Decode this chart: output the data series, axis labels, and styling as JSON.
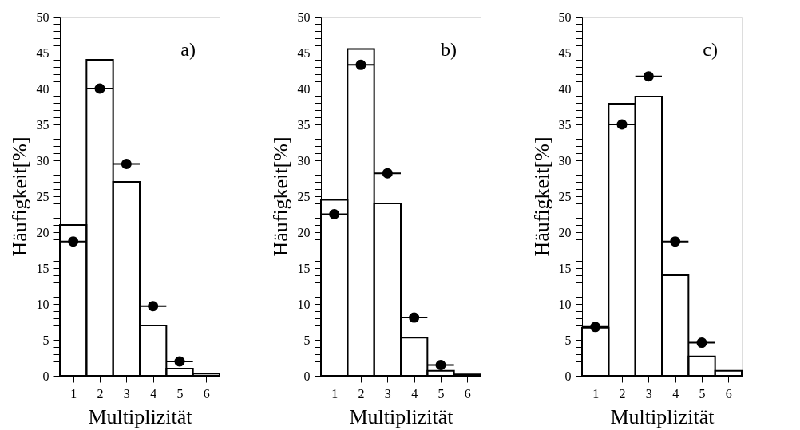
{
  "chart_data": [
    {
      "type": "histogram",
      "xlabel": "Multiplizität",
      "ylabel": "Häufigkeit[%]",
      "annotations": [
        "a)"
      ],
      "bins": [
        0.5,
        1.5,
        2.5,
        3.5,
        4.5,
        5.5,
        6.5
      ],
      "xlim": [
        0.5,
        6.5
      ],
      "xticks": [
        1,
        2,
        3,
        4,
        5,
        6
      ],
      "ylim": [
        0,
        50
      ],
      "yticks": [
        0,
        {
          "value": 1,
          "label": null
        },
        {
          "value": 2,
          "label": null
        },
        {
          "value": 3,
          "label": null
        },
        {
          "value": 4,
          "label": null
        },
        5,
        {
          "value": 6,
          "label": null
        },
        {
          "value": 7,
          "label": null
        },
        {
          "value": 8,
          "label": null
        },
        {
          "value": 9,
          "label": null
        },
        10,
        {
          "value": 11,
          "label": null
        },
        {
          "value": 12,
          "label": null
        },
        {
          "value": 13,
          "label": null
        },
        {
          "value": 14,
          "label": null
        },
        15,
        {
          "value": 16,
          "label": null
        },
        {
          "value": 17,
          "label": null
        },
        {
          "value": 18,
          "label": null
        },
        {
          "value": 19,
          "label": null
        },
        20,
        {
          "value": 21,
          "label": null
        },
        {
          "value": 22,
          "label": null
        },
        {
          "value": 23,
          "label": null
        },
        {
          "value": 24,
          "label": null
        },
        25,
        {
          "value": 26,
          "label": null
        },
        {
          "value": 27,
          "label": null
        },
        {
          "value": 28,
          "label": null
        },
        {
          "value": 29,
          "label": null
        },
        30,
        {
          "value": 31,
          "label": null
        },
        {
          "value": 32,
          "label": null
        },
        {
          "value": 33,
          "label": null
        },
        {
          "value": 34,
          "label": null
        },
        35,
        {
          "value": 36,
          "label": null
        },
        {
          "value": 37,
          "label": null
        },
        {
          "value": 38,
          "label": null
        },
        {
          "value": 39,
          "label": null
        },
        40,
        {
          "value": 41,
          "label": null
        },
        {
          "value": 42,
          "label": null
        },
        {
          "value": 43,
          "label": null
        },
        {
          "value": 44,
          "label": null
        },
        45,
        {
          "value": 46,
          "label": null
        },
        {
          "value": 47,
          "label": null
        },
        {
          "value": 48,
          "label": null
        },
        {
          "value": 49,
          "label": null
        },
        50
      ],
      "grid": false,
      "series": [
        {
          "color": "#000000",
          "values": [
            21,
            44,
            27,
            7,
            1,
            0.3
          ]
        },
        {
          "type": "scatter",
          "color": "#000000",
          "marker": "circle",
          "x": [
            1,
            2,
            3,
            4,
            5
          ],
          "values": [
            18.7,
            40,
            29.5,
            9.7,
            2
          ],
          "xerrors": [
            0.5,
            0.5,
            0.5,
            0.5,
            0.5
          ]
        }
      ]
    },
    {
      "type": "histogram",
      "xlabel": "Multiplizität",
      "ylabel": "Häufigkeit[%]",
      "annotations": [
        "b)"
      ],
      "bins": [
        0.5,
        1.5,
        2.5,
        3.5,
        4.5,
        5.5,
        6.5
      ],
      "xlim": [
        0.5,
        6.5
      ],
      "xticks": [
        1,
        2,
        3,
        4,
        5,
        6
      ],
      "ylim": [
        0,
        50
      ],
      "yticks": [
        0,
        {
          "value": 1,
          "label": null
        },
        {
          "value": 2,
          "label": null
        },
        {
          "value": 3,
          "label": null
        },
        {
          "value": 4,
          "label": null
        },
        5,
        {
          "value": 6,
          "label": null
        },
        {
          "value": 7,
          "label": null
        },
        {
          "value": 8,
          "label": null
        },
        {
          "value": 9,
          "label": null
        },
        10,
        {
          "value": 11,
          "label": null
        },
        {
          "value": 12,
          "label": null
        },
        {
          "value": 13,
          "label": null
        },
        {
          "value": 14,
          "label": null
        },
        15,
        {
          "value": 16,
          "label": null
        },
        {
          "value": 17,
          "label": null
        },
        {
          "value": 18,
          "label": null
        },
        {
          "value": 19,
          "label": null
        },
        20,
        {
          "value": 21,
          "label": null
        },
        {
          "value": 22,
          "label": null
        },
        {
          "value": 23,
          "label": null
        },
        {
          "value": 24,
          "label": null
        },
        25,
        {
          "value": 26,
          "label": null
        },
        {
          "value": 27,
          "label": null
        },
        {
          "value": 28,
          "label": null
        },
        {
          "value": 29,
          "label": null
        },
        30,
        {
          "value": 31,
          "label": null
        },
        {
          "value": 32,
          "label": null
        },
        {
          "value": 33,
          "label": null
        },
        {
          "value": 34,
          "label": null
        },
        35,
        {
          "value": 36,
          "label": null
        },
        {
          "value": 37,
          "label": null
        },
        {
          "value": 38,
          "label": null
        },
        {
          "value": 39,
          "label": null
        },
        40,
        {
          "value": 41,
          "label": null
        },
        {
          "value": 42,
          "label": null
        },
        {
          "value": 43,
          "label": null
        },
        {
          "value": 44,
          "label": null
        },
        45,
        {
          "value": 46,
          "label": null
        },
        {
          "value": 47,
          "label": null
        },
        {
          "value": 48,
          "label": null
        },
        {
          "value": 49,
          "label": null
        },
        50
      ],
      "grid": false,
      "series": [
        {
          "color": "#000000",
          "values": [
            24.5,
            45.5,
            24,
            5.3,
            0.7,
            0.2
          ]
        },
        {
          "type": "scatter",
          "color": "#000000",
          "marker": "circle",
          "x": [
            1,
            2,
            3,
            4,
            5
          ],
          "values": [
            22.5,
            43.3,
            28.2,
            8.1,
            1.5
          ],
          "xerrors": [
            0.5,
            0.5,
            0.5,
            0.5,
            0.5
          ]
        }
      ]
    },
    {
      "type": "histogram",
      "xlabel": "Multiplizität",
      "ylabel": "Häufigkeit[%]",
      "annotations": [
        "c)"
      ],
      "bins": [
        0.5,
        1.5,
        2.5,
        3.5,
        4.5,
        5.5,
        6.5
      ],
      "xlim": [
        0.5,
        6.5
      ],
      "xticks": [
        1,
        2,
        3,
        4,
        5,
        6
      ],
      "ylim": [
        0,
        50
      ],
      "yticks": [
        0,
        {
          "value": 1,
          "label": null
        },
        {
          "value": 2,
          "label": null
        },
        {
          "value": 3,
          "label": null
        },
        {
          "value": 4,
          "label": null
        },
        5,
        {
          "value": 6,
          "label": null
        },
        {
          "value": 7,
          "label": null
        },
        {
          "value": 8,
          "label": null
        },
        {
          "value": 9,
          "label": null
        },
        10,
        {
          "value": 11,
          "label": null
        },
        {
          "value": 12,
          "label": null
        },
        {
          "value": 13,
          "label": null
        },
        {
          "value": 14,
          "label": null
        },
        15,
        {
          "value": 16,
          "label": null
        },
        {
          "value": 17,
          "label": null
        },
        {
          "value": 18,
          "label": null
        },
        {
          "value": 19,
          "label": null
        },
        20,
        {
          "value": 21,
          "label": null
        },
        {
          "value": 22,
          "label": null
        },
        {
          "value": 23,
          "label": null
        },
        {
          "value": 24,
          "label": null
        },
        25,
        {
          "value": 26,
          "label": null
        },
        {
          "value": 27,
          "label": null
        },
        {
          "value": 28,
          "label": null
        },
        {
          "value": 29,
          "label": null
        },
        30,
        {
          "value": 31,
          "label": null
        },
        {
          "value": 32,
          "label": null
        },
        {
          "value": 33,
          "label": null
        },
        {
          "value": 34,
          "label": null
        },
        35,
        {
          "value": 36,
          "label": null
        },
        {
          "value": 37,
          "label": null
        },
        {
          "value": 38,
          "label": null
        },
        {
          "value": 39,
          "label": null
        },
        40,
        {
          "value": 41,
          "label": null
        },
        {
          "value": 42,
          "label": null
        },
        {
          "value": 43,
          "label": null
        },
        {
          "value": 44,
          "label": null
        },
        45,
        {
          "value": 46,
          "label": null
        },
        {
          "value": 47,
          "label": null
        },
        {
          "value": 48,
          "label": null
        },
        {
          "value": 49,
          "label": null
        },
        50
      ],
      "grid": false,
      "series": [
        {
          "color": "#000000",
          "values": [
            6.7,
            37.9,
            38.9,
            14,
            2.7,
            0.7
          ]
        },
        {
          "type": "scatter",
          "color": "#000000",
          "marker": "circle",
          "x": [
            1,
            2,
            3,
            4,
            5
          ],
          "values": [
            6.8,
            35,
            41.7,
            18.7,
            4.6
          ],
          "xerrors": [
            0.5,
            0.5,
            0.5,
            0.5,
            0.5
          ]
        }
      ]
    }
  ]
}
